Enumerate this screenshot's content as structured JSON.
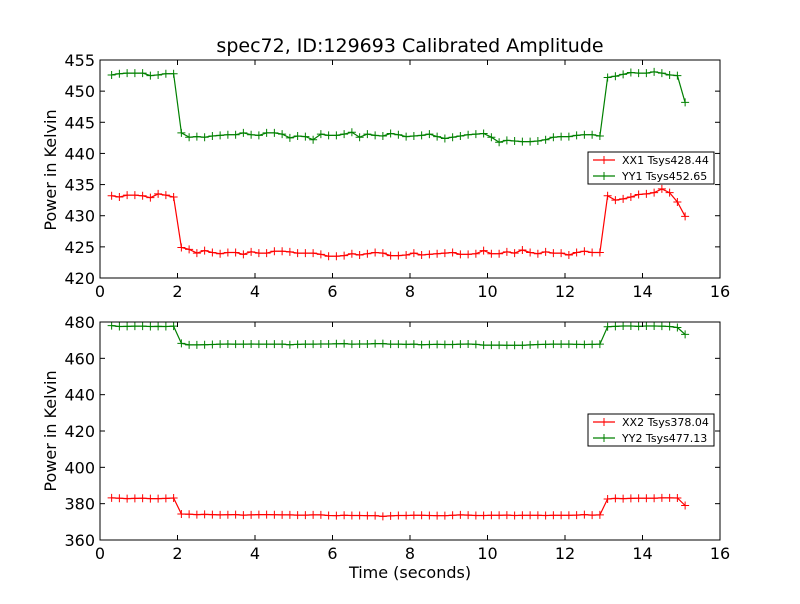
{
  "chart_data": [
    {
      "type": "line",
      "title": "spec72, ID:129693 Calibrated Amplitude",
      "xlabel": "",
      "ylabel": "Power in Kelvin",
      "xlim": [
        0,
        16
      ],
      "ylim": [
        420,
        455
      ],
      "xticks": [
        0,
        2,
        4,
        6,
        8,
        10,
        12,
        14,
        16
      ],
      "yticks": [
        420,
        425,
        430,
        435,
        440,
        445,
        450,
        455
      ],
      "legend_position": "center-right",
      "x": [
        0.3,
        0.5,
        0.7,
        0.9,
        1.1,
        1.3,
        1.5,
        1.7,
        1.9,
        2.1,
        2.3,
        2.5,
        2.7,
        2.9,
        3.1,
        3.3,
        3.5,
        3.7,
        3.9,
        4.1,
        4.3,
        4.5,
        4.7,
        4.9,
        5.1,
        5.3,
        5.5,
        5.7,
        5.9,
        6.1,
        6.3,
        6.5,
        6.7,
        6.9,
        7.1,
        7.3,
        7.5,
        7.7,
        7.9,
        8.1,
        8.3,
        8.5,
        8.7,
        8.9,
        9.1,
        9.3,
        9.5,
        9.7,
        9.9,
        10.1,
        10.3,
        10.5,
        10.7,
        10.9,
        11.1,
        11.3,
        11.5,
        11.7,
        11.9,
        12.1,
        12.3,
        12.5,
        12.7,
        12.9,
        13.1,
        13.3,
        13.5,
        13.7,
        13.9,
        14.1,
        14.3,
        14.5,
        14.7,
        14.9,
        15.1
      ],
      "series": [
        {
          "name": "XX1 Tsys428.44",
          "color": "#ff0000",
          "values": [
            433.2,
            433.0,
            433.3,
            433.3,
            433.2,
            432.9,
            433.5,
            433.3,
            433.0,
            424.9,
            424.6,
            424.0,
            424.4,
            424.1,
            423.9,
            424.1,
            424.1,
            423.8,
            424.2,
            424.0,
            424.0,
            424.3,
            424.3,
            424.2,
            424.0,
            424.0,
            424.0,
            423.8,
            423.5,
            423.5,
            423.6,
            423.9,
            423.7,
            423.9,
            424.1,
            424.0,
            423.6,
            423.6,
            423.7,
            424.0,
            423.7,
            423.8,
            423.9,
            424.0,
            424.1,
            423.8,
            423.8,
            423.9,
            424.4,
            423.9,
            423.9,
            424.2,
            424.0,
            424.5,
            424.1,
            423.9,
            424.2,
            424.0,
            424.0,
            423.7,
            424.1,
            424.3,
            424.1,
            424.1,
            433.2,
            432.5,
            432.7,
            433.0,
            433.4,
            433.5,
            433.7,
            434.3,
            433.7,
            432.2,
            429.9
          ]
        },
        {
          "name": "YY1 Tsys452.65",
          "color": "#008000",
          "values": [
            452.6,
            452.8,
            452.9,
            452.9,
            452.9,
            452.5,
            452.6,
            452.8,
            452.8,
            443.3,
            442.6,
            442.7,
            442.6,
            442.8,
            442.9,
            443.0,
            443.0,
            443.3,
            443.0,
            442.9,
            443.3,
            443.3,
            443.1,
            442.5,
            442.8,
            442.7,
            442.2,
            443.1,
            442.9,
            442.9,
            443.1,
            443.4,
            442.6,
            443.1,
            442.9,
            442.8,
            443.2,
            443.0,
            442.7,
            442.8,
            442.9,
            443.1,
            442.7,
            442.4,
            442.6,
            442.8,
            443.0,
            443.1,
            443.2,
            442.6,
            441.8,
            442.1,
            442.0,
            441.9,
            441.9,
            442.0,
            442.2,
            442.6,
            442.7,
            442.7,
            442.9,
            443.0,
            443.0,
            442.8,
            452.2,
            452.4,
            452.7,
            453.0,
            452.9,
            452.9,
            453.1,
            452.9,
            452.6,
            452.5,
            448.2
          ]
        }
      ]
    },
    {
      "type": "line",
      "title": "",
      "xlabel": "Time (seconds)",
      "ylabel": "Power in Kelvin",
      "xlim": [
        0,
        16
      ],
      "ylim": [
        360,
        480
      ],
      "xticks": [
        0,
        2,
        4,
        6,
        8,
        10,
        12,
        14,
        16
      ],
      "yticks": [
        360,
        380,
        400,
        420,
        440,
        460,
        480
      ],
      "legend_position": "center-right",
      "x": [
        0.3,
        0.5,
        0.7,
        0.9,
        1.1,
        1.3,
        1.5,
        1.7,
        1.9,
        2.1,
        2.3,
        2.5,
        2.7,
        2.9,
        3.1,
        3.3,
        3.5,
        3.7,
        3.9,
        4.1,
        4.3,
        4.5,
        4.7,
        4.9,
        5.1,
        5.3,
        5.5,
        5.7,
        5.9,
        6.1,
        6.3,
        6.5,
        6.7,
        6.9,
        7.1,
        7.3,
        7.5,
        7.7,
        7.9,
        8.1,
        8.3,
        8.5,
        8.7,
        8.9,
        9.1,
        9.3,
        9.5,
        9.7,
        9.9,
        10.1,
        10.3,
        10.5,
        10.7,
        10.9,
        11.1,
        11.3,
        11.5,
        11.7,
        11.9,
        12.1,
        12.3,
        12.5,
        12.7,
        12.9,
        13.1,
        13.3,
        13.5,
        13.7,
        13.9,
        14.1,
        14.3,
        14.5,
        14.7,
        14.9,
        15.1
      ],
      "series": [
        {
          "name": "XX2 Tsys378.04",
          "color": "#ff0000",
          "values": [
            383.2,
            383.0,
            382.8,
            382.9,
            383.0,
            382.8,
            382.8,
            382.9,
            383.1,
            374.3,
            374.2,
            374.0,
            374.1,
            374.0,
            373.8,
            373.9,
            374.0,
            373.7,
            373.8,
            374.0,
            374.0,
            373.9,
            373.8,
            373.8,
            373.7,
            373.7,
            373.8,
            373.8,
            373.5,
            373.4,
            373.6,
            373.5,
            373.5,
            373.4,
            373.4,
            373.0,
            373.3,
            373.5,
            373.5,
            373.6,
            373.6,
            373.5,
            373.4,
            373.4,
            373.6,
            373.8,
            373.7,
            373.5,
            373.5,
            373.6,
            373.6,
            373.7,
            373.5,
            373.6,
            373.6,
            373.6,
            373.5,
            373.6,
            373.6,
            373.6,
            373.7,
            374.0,
            373.7,
            373.8,
            382.6,
            382.9,
            382.8,
            382.9,
            383.0,
            383.0,
            383.0,
            383.2,
            383.2,
            383.1,
            379.0
          ]
        },
        {
          "name": "YY2 Tsys477.13",
          "color": "#008000",
          "values": [
            478.0,
            477.5,
            477.6,
            477.7,
            477.7,
            477.5,
            477.6,
            477.5,
            477.7,
            468.2,
            467.4,
            467.4,
            467.5,
            467.6,
            467.8,
            467.9,
            467.8,
            467.8,
            467.9,
            467.8,
            467.8,
            467.8,
            467.8,
            467.5,
            467.7,
            467.8,
            467.8,
            467.9,
            467.9,
            468.0,
            468.1,
            467.8,
            467.9,
            467.9,
            468.1,
            468.1,
            467.8,
            467.8,
            467.7,
            467.8,
            467.5,
            467.6,
            467.7,
            467.6,
            467.6,
            467.8,
            467.9,
            467.7,
            467.3,
            467.3,
            467.3,
            467.2,
            467.2,
            467.2,
            467.4,
            467.6,
            467.7,
            467.8,
            467.8,
            467.8,
            467.7,
            467.6,
            467.7,
            467.8,
            477.4,
            477.6,
            477.8,
            477.8,
            477.6,
            477.8,
            477.8,
            477.7,
            477.5,
            477.0,
            473.2
          ]
        }
      ]
    }
  ]
}
